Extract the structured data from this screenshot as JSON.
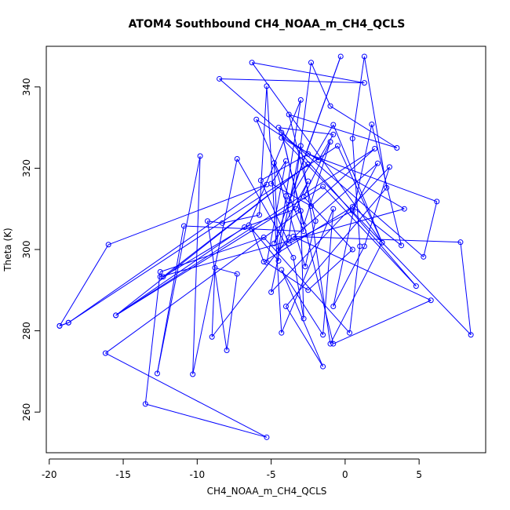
{
  "chart_data": {
    "type": "line",
    "title": "ATOM4 Southbound CH4_NOAA_m_CH4_QCLS",
    "xlabel": "CH4_NOAA_m_CH4_QCLS",
    "ylabel": "Theta (K)",
    "xlim": [
      -20.2,
      9.5
    ],
    "ylim": [
      250,
      350
    ],
    "xticks": [
      -20,
      -15,
      -10,
      -5,
      0,
      5
    ],
    "yticks": [
      260,
      280,
      300,
      320,
      340
    ],
    "grid": false,
    "legend": "none",
    "series_color": "#0000ff",
    "marker": "open-circle",
    "points": [
      [
        -19.3,
        281.2
      ],
      [
        -18.7,
        282.0
      ],
      [
        -5.3,
        316.0
      ],
      [
        -16.0,
        301.2
      ],
      [
        -19.3,
        281.2
      ],
      [
        -18.7,
        282.0
      ],
      [
        -0.5,
        325.5
      ],
      [
        2.5,
        301.7
      ],
      [
        -6.3,
        346.0
      ],
      [
        1.3,
        341.0
      ],
      [
        -8.5,
        342.0
      ],
      [
        5.3,
        298.2
      ],
      [
        6.2,
        311.8
      ],
      [
        -2.5,
        323.5
      ],
      [
        -5.7,
        317.0
      ],
      [
        -3.8,
        301.5
      ],
      [
        0.5,
        309.5
      ],
      [
        2.2,
        321.2
      ],
      [
        -4.5,
        299.8
      ],
      [
        -4.0,
        313.2
      ],
      [
        -3.0,
        336.8
      ],
      [
        -6.5,
        306.0
      ],
      [
        -12.3,
        293.3
      ],
      [
        -2.5,
        321.0
      ],
      [
        -15.5,
        283.8
      ],
      [
        -1.5,
        315.5
      ],
      [
        4.8,
        291.0
      ],
      [
        -4.5,
        330.0
      ],
      [
        -0.8,
        328.3
      ],
      [
        -1.8,
        322.0
      ],
      [
        -6.0,
        332.0
      ],
      [
        -2.8,
        304.5
      ],
      [
        -10.9,
        305.8
      ],
      [
        -12.7,
        269.5
      ],
      [
        -9.8,
        323.0
      ],
      [
        -10.3,
        269.3
      ],
      [
        -7.3,
        322.3
      ],
      [
        -3.5,
        298.0
      ],
      [
        -2.8,
        283.0
      ],
      [
        -3.0,
        309.5
      ],
      [
        -16.2,
        274.5
      ],
      [
        -5.3,
        253.8
      ],
      [
        -13.5,
        262.0
      ],
      [
        -12.5,
        294.5
      ],
      [
        -5.5,
        303.0
      ],
      [
        0.3,
        279.5
      ],
      [
        1.0,
        300.8
      ],
      [
        0.5,
        327.3
      ],
      [
        1.3,
        347.5
      ],
      [
        2.8,
        315.2
      ],
      [
        -4.0,
        286.0
      ],
      [
        -1.5,
        271.2
      ],
      [
        -4.3,
        295.0
      ],
      [
        -1.5,
        279.0
      ],
      [
        -0.8,
        310.0
      ],
      [
        -4.3,
        279.5
      ],
      [
        -5.3,
        340.2
      ],
      [
        -5.8,
        308.5
      ],
      [
        -8.3,
        306.5
      ],
      [
        -9.3,
        307.0
      ],
      [
        -8.0,
        275.2
      ],
      [
        -7.3,
        294.0
      ],
      [
        -8.8,
        295.5
      ],
      [
        -9.0,
        278.5
      ],
      [
        -3.8,
        303.0
      ],
      [
        -2.3,
        346.0
      ],
      [
        -1.0,
        335.3
      ],
      [
        3.5,
        325.0
      ],
      [
        -3.8,
        333.2
      ],
      [
        -2.0,
        307.0
      ],
      [
        -2.7,
        295.8
      ],
      [
        -4.8,
        321.3
      ],
      [
        -4.5,
        297.2
      ],
      [
        -6.3,
        305.0
      ],
      [
        -5.5,
        297.0
      ],
      [
        0.5,
        310.5
      ],
      [
        3.8,
        301.0
      ],
      [
        1.8,
        330.8
      ],
      [
        -0.8,
        286.0
      ],
      [
        1.3,
        300.8
      ],
      [
        3.0,
        320.3
      ],
      [
        -5.0,
        289.5
      ],
      [
        -3.0,
        325.5
      ],
      [
        -1.0,
        276.8
      ],
      [
        2.5,
        301.7
      ],
      [
        -0.8,
        330.7
      ],
      [
        -3.8,
        312.0
      ],
      [
        -0.3,
        347.5
      ],
      [
        -4.8,
        301.5
      ],
      [
        -2.5,
        316.8
      ],
      [
        -3.3,
        310.0
      ],
      [
        -6.8,
        305.5
      ],
      [
        -15.5,
        283.8
      ],
      [
        2.0,
        324.8
      ],
      [
        -2.3,
        310.7
      ],
      [
        -5.0,
        316.2
      ],
      [
        -4.0,
        321.8
      ],
      [
        -5.3,
        296.8
      ],
      [
        -2.5,
        290.0
      ],
      [
        0.5,
        300.0
      ],
      [
        -2.8,
        313.0
      ],
      [
        -1.0,
        326.5
      ],
      [
        -2.8,
        306.0
      ],
      [
        -4.3,
        328.8
      ],
      [
        -0.8,
        276.8
      ],
      [
        5.8,
        287.5
      ],
      [
        -3.5,
        303.2
      ],
      [
        7.8,
        301.8
      ],
      [
        8.5,
        279.0
      ],
      [
        -4.3,
        327.5
      ],
      [
        4.0,
        310.0
      ],
      [
        -12.5,
        293.3
      ]
    ]
  }
}
